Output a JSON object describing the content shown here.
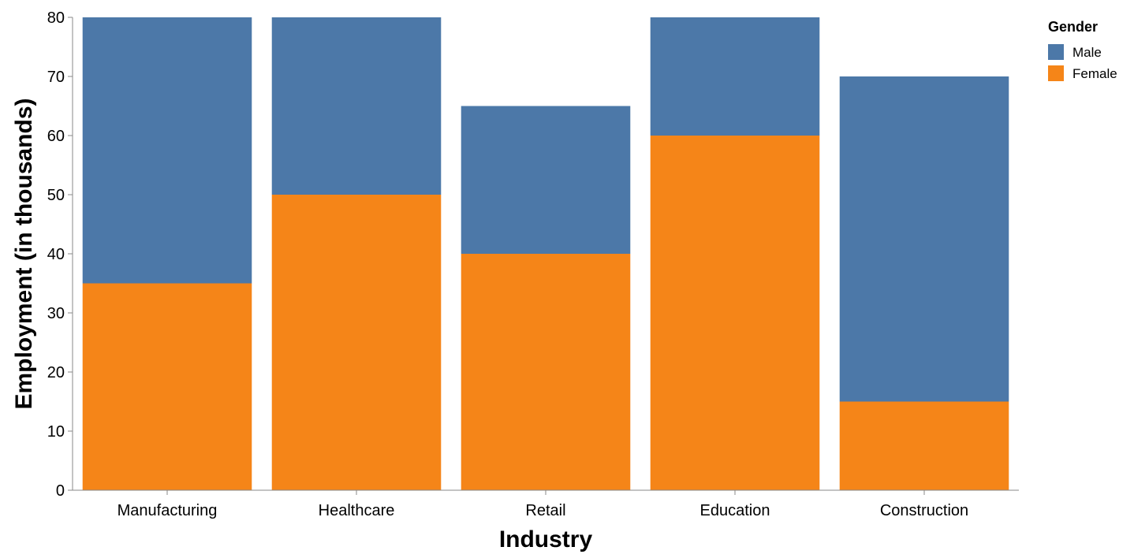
{
  "chart_data": {
    "type": "bar",
    "stacked": true,
    "categories": [
      "Manufacturing",
      "Healthcare",
      "Retail",
      "Education",
      "Construction"
    ],
    "series": [
      {
        "name": "Female",
        "values": [
          35,
          50,
          40,
          60,
          15
        ],
        "color": "#f58518"
      },
      {
        "name": "Male",
        "values": [
          45,
          30,
          25,
          20,
          55
        ],
        "color": "#4c78a8"
      }
    ],
    "xlabel": "Industry",
    "ylabel": "Employment (in thousands)",
    "ylim": [
      0,
      80
    ],
    "yticks": [
      0,
      10,
      20,
      30,
      40,
      50,
      60,
      70,
      80
    ],
    "grid": false,
    "legend": {
      "title": "Gender",
      "placement": "top-right",
      "entries": [
        {
          "label": "Male",
          "color": "#4c78a8"
        },
        {
          "label": "Female",
          "color": "#f58518"
        }
      ]
    }
  }
}
